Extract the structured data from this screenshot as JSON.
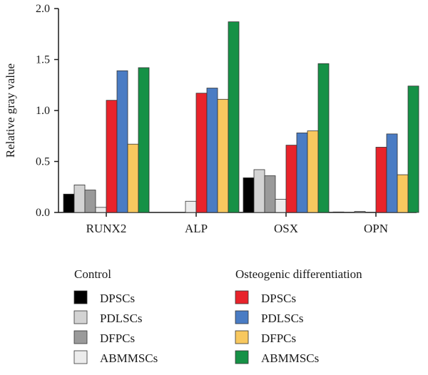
{
  "chart_data": {
    "type": "bar",
    "ylabel": "Relative gray value",
    "xlabel": "",
    "ylim": [
      0,
      2.0
    ],
    "yticks": [
      "0.0",
      "0.5",
      "1.0",
      "1.5",
      "2.0"
    ],
    "categories": [
      "RUNX2",
      "ALP",
      "OSX",
      "OPN"
    ],
    "legend_groups": [
      "Control",
      "Osteogenic differentiation"
    ],
    "series": [
      {
        "name": "DPSCs",
        "group": "Control",
        "color": "#000000",
        "values": [
          0.18,
          0.0,
          0.34,
          0.005
        ]
      },
      {
        "name": "PDLSCs",
        "group": "Control",
        "color": "#d3d3d3",
        "values": [
          0.27,
          0.0,
          0.42,
          0.0
        ]
      },
      {
        "name": "DFPCs",
        "group": "Control",
        "color": "#9a9a9a",
        "values": [
          0.22,
          0.0,
          0.36,
          0.01
        ]
      },
      {
        "name": "ABMMSCs",
        "group": "Control",
        "color": "#ececec",
        "values": [
          0.05,
          0.11,
          0.13,
          0.0
        ]
      },
      {
        "name": "DPSCs",
        "group": "Osteogenic differentiation",
        "color": "#e8232b",
        "values": [
          1.1,
          1.17,
          0.66,
          0.64
        ]
      },
      {
        "name": "PDLSCs",
        "group": "Osteogenic differentiation",
        "color": "#4a7cc4",
        "values": [
          1.39,
          1.22,
          0.78,
          0.77
        ]
      },
      {
        "name": "DFPCs",
        "group": "Osteogenic differentiation",
        "color": "#f8c85f",
        "values": [
          0.67,
          1.11,
          0.8,
          0.37
        ]
      },
      {
        "name": "ABMMSCs",
        "group": "Osteogenic differentiation",
        "color": "#169146",
        "values": [
          1.42,
          1.87,
          1.46,
          1.24
        ]
      }
    ],
    "legend_placement": "bottom",
    "grid": false
  }
}
